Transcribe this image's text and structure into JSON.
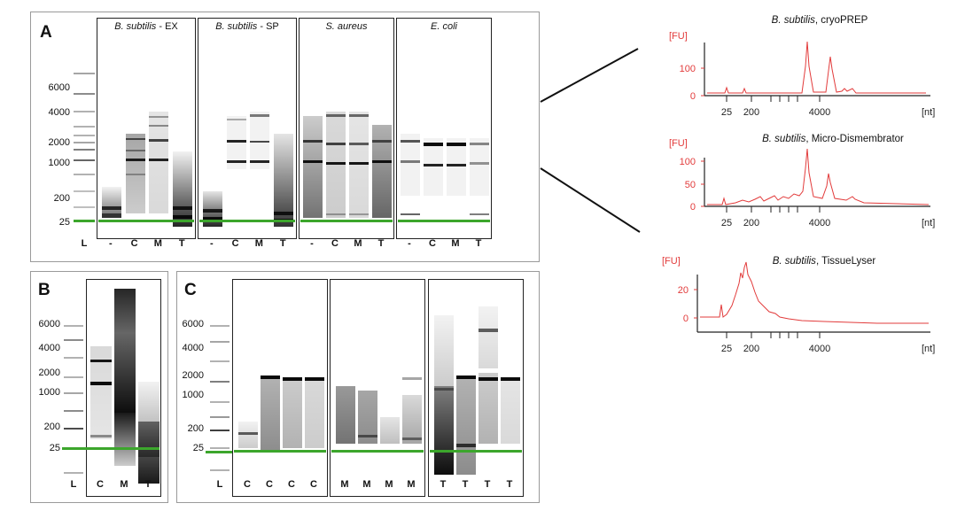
{
  "panelA": {
    "label": "A",
    "gels": [
      {
        "species": "B. subtilis",
        "suffix": " - EX"
      },
      {
        "species": "B. subtilis",
        "suffix": " - SP"
      },
      {
        "species": "S. aureus",
        "suffix": ""
      },
      {
        "species": "E. coli",
        "suffix": ""
      }
    ],
    "ladder": [
      "6000",
      "4000",
      "2000",
      "1000",
      "200",
      "25"
    ],
    "ladder_lane": "L",
    "lane_labels": [
      "-",
      "C",
      "M",
      "T"
    ]
  },
  "panelB": {
    "label": "B",
    "ladder": [
      "6000",
      "4000",
      "2000",
      "1000",
      "200",
      "25"
    ],
    "ladder_lane": "L",
    "lane_labels": [
      "C",
      "M",
      "T"
    ]
  },
  "panelC": {
    "label": "C",
    "ladder": [
      "6000",
      "4000",
      "2000",
      "1000",
      "200",
      "25"
    ],
    "ladder_lane": "L",
    "groups": [
      [
        "C",
        "C",
        "C",
        "C"
      ],
      [
        "M",
        "M",
        "M",
        "M"
      ],
      [
        "T",
        "T",
        "T",
        "T"
      ]
    ]
  },
  "traces": [
    {
      "species": "B. subtilis",
      "method": ", cryoPREP",
      "yunit": "[FU]",
      "xunit": "[nt]",
      "yticks": [
        "0",
        "100"
      ],
      "xticks": [
        "25",
        "200",
        "4000"
      ]
    },
    {
      "species": "B. subtilis",
      "method": ", Micro-Dismembrator",
      "yunit": "[FU]",
      "xunit": "[nt]",
      "yticks": [
        "0",
        "50",
        "100"
      ],
      "xticks": [
        "25",
        "200",
        "4000"
      ]
    },
    {
      "species": "B. subtilis",
      "method": ", TissueLyser",
      "yunit": "[FU]",
      "xunit": "[nt]",
      "yticks": [
        "0",
        "20"
      ],
      "xticks": [
        "25",
        "200",
        "4000"
      ]
    }
  ]
}
